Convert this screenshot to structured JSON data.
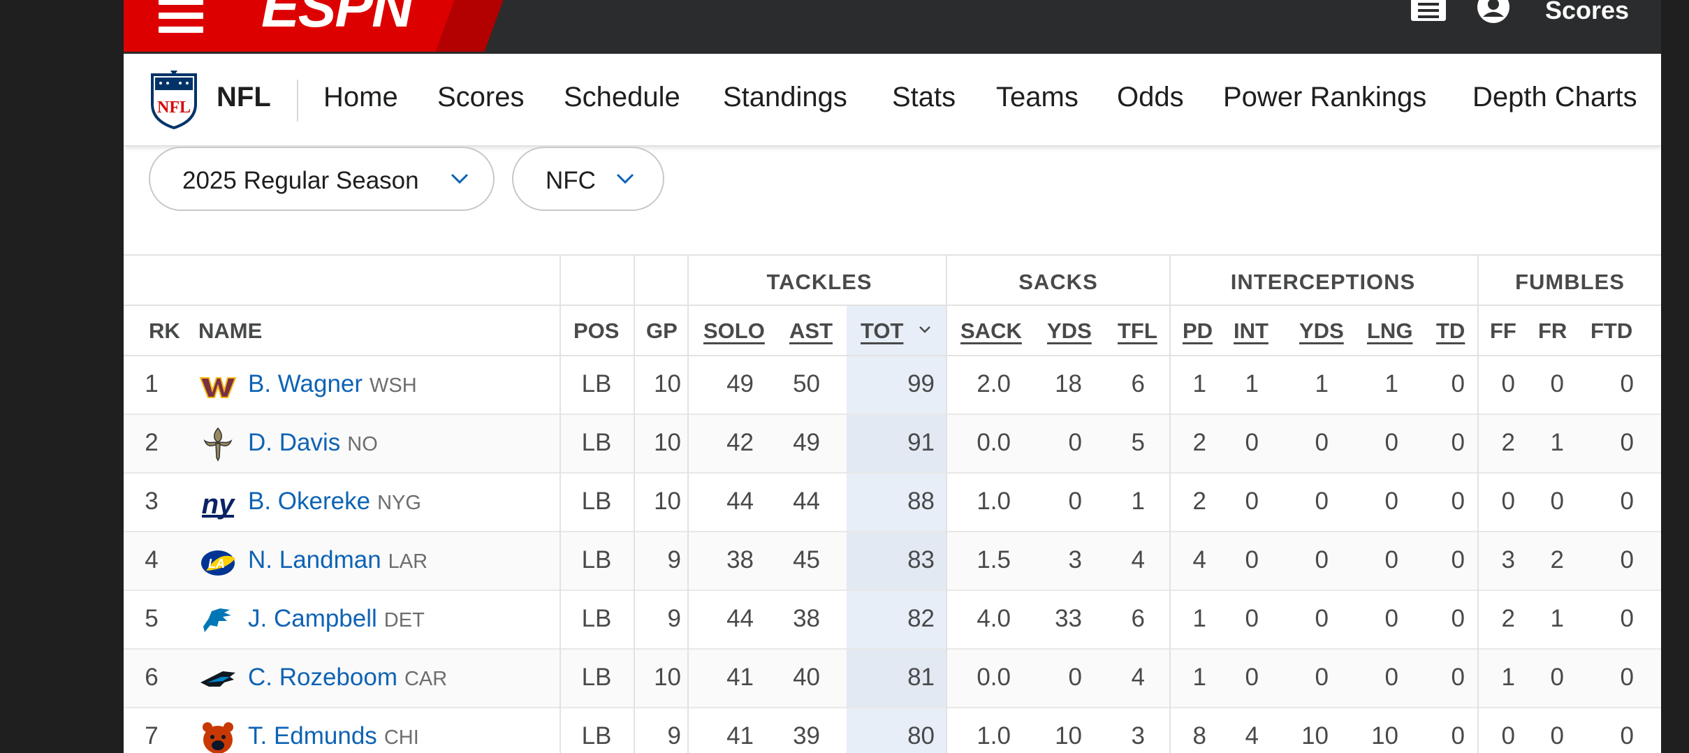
{
  "header": {
    "brand": "ESPN",
    "scores_label": "Scores",
    "icons": [
      "menu-icon",
      "notes-icon",
      "profile-icon"
    ],
    "accent_color": "#dd0000"
  },
  "nav": {
    "league": "NFL",
    "items": [
      "Home",
      "Scores",
      "Schedule",
      "Standings",
      "Stats",
      "Teams",
      "Odds",
      "Power Rankings",
      "Depth Charts"
    ]
  },
  "filters": {
    "season": "2025 Regular Season",
    "conference": "NFC"
  },
  "table": {
    "groups": [
      "TACKLES",
      "SACKS",
      "INTERCEPTIONS",
      "FUMBLES"
    ],
    "columns": [
      "RK",
      "NAME",
      "POS",
      "GP",
      "SOLO",
      "AST",
      "TOT",
      "SACK",
      "YDS",
      "TFL",
      "PD",
      "INT",
      "YDS",
      "LNG",
      "TD",
      "FF",
      "FR",
      "FTD"
    ],
    "sorted_column": "TOT",
    "rows": [
      {
        "rk": "1",
        "name": "B. Wagner",
        "team": "WSH",
        "pos": "LB",
        "gp": "10",
        "solo": "49",
        "ast": "50",
        "tot": "99",
        "sack": "2.0",
        "syds": "18",
        "tfl": "6",
        "pd": "1",
        "int": "1",
        "iyds": "1",
        "lng": "1",
        "td": "0",
        "ff": "0",
        "fr": "0",
        "ftd": "0",
        "logo": "commanders-logo"
      },
      {
        "rk": "2",
        "name": "D. Davis",
        "team": "NO",
        "pos": "LB",
        "gp": "10",
        "solo": "42",
        "ast": "49",
        "tot": "91",
        "sack": "0.0",
        "syds": "0",
        "tfl": "5",
        "pd": "2",
        "int": "0",
        "iyds": "0",
        "lng": "0",
        "td": "0",
        "ff": "2",
        "fr": "1",
        "ftd": "0",
        "logo": "saints-logo"
      },
      {
        "rk": "3",
        "name": "B. Okereke",
        "team": "NYG",
        "pos": "LB",
        "gp": "10",
        "solo": "44",
        "ast": "44",
        "tot": "88",
        "sack": "1.0",
        "syds": "0",
        "tfl": "1",
        "pd": "2",
        "int": "0",
        "iyds": "0",
        "lng": "0",
        "td": "0",
        "ff": "0",
        "fr": "0",
        "ftd": "0",
        "logo": "giants-logo"
      },
      {
        "rk": "4",
        "name": "N. Landman",
        "team": "LAR",
        "pos": "LB",
        "gp": "9",
        "solo": "38",
        "ast": "45",
        "tot": "83",
        "sack": "1.5",
        "syds": "3",
        "tfl": "4",
        "pd": "4",
        "int": "0",
        "iyds": "0",
        "lng": "0",
        "td": "0",
        "ff": "3",
        "fr": "2",
        "ftd": "0",
        "logo": "rams-logo"
      },
      {
        "rk": "5",
        "name": "J. Campbell",
        "team": "DET",
        "pos": "LB",
        "gp": "9",
        "solo": "44",
        "ast": "38",
        "tot": "82",
        "sack": "4.0",
        "syds": "33",
        "tfl": "6",
        "pd": "1",
        "int": "0",
        "iyds": "0",
        "lng": "0",
        "td": "0",
        "ff": "2",
        "fr": "1",
        "ftd": "0",
        "logo": "lions-logo"
      },
      {
        "rk": "6",
        "name": "C. Rozeboom",
        "team": "CAR",
        "pos": "LB",
        "gp": "10",
        "solo": "41",
        "ast": "40",
        "tot": "81",
        "sack": "0.0",
        "syds": "0",
        "tfl": "4",
        "pd": "1",
        "int": "0",
        "iyds": "0",
        "lng": "0",
        "td": "0",
        "ff": "1",
        "fr": "0",
        "ftd": "0",
        "logo": "panthers-logo"
      },
      {
        "rk": "7",
        "name": "T. Edmunds",
        "team": "CHI",
        "pos": "LB",
        "gp": "9",
        "solo": "41",
        "ast": "39",
        "tot": "80",
        "sack": "1.0",
        "syds": "10",
        "tfl": "3",
        "pd": "8",
        "int": "4",
        "iyds": "10",
        "lng": "10",
        "td": "0",
        "ff": "0",
        "fr": "0",
        "ftd": "0",
        "logo": "bears-logo"
      }
    ]
  }
}
